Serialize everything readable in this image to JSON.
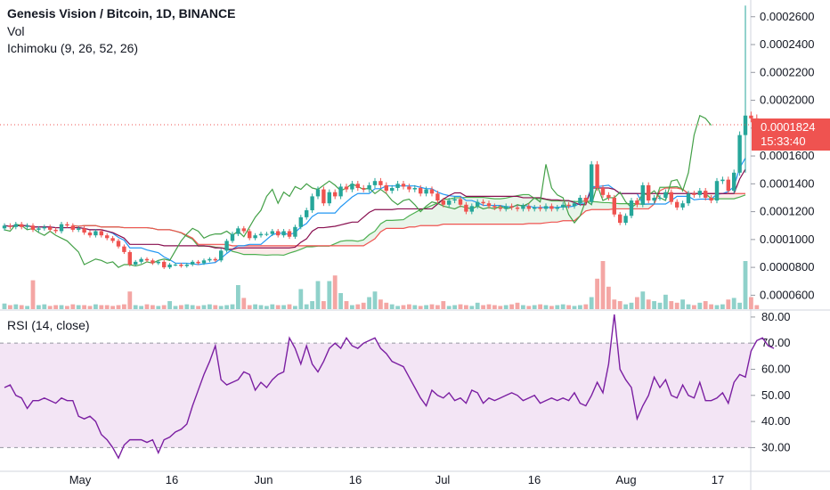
{
  "header": {
    "title": "Genesis Vision / Bitcoin, 1D, BINANCE",
    "vol_label": "Vol",
    "ichimoku_label": "Ichimoku (9, 26, 52, 26)",
    "rsi_label": "RSI (14, close)"
  },
  "price_tag": {
    "last": "0.0001824",
    "countdown": "15:33:40"
  },
  "colors": {
    "up": "#26a69a",
    "down": "#ef5350",
    "vol_up": "#8fd1ca",
    "vol_down": "#f4a6a4",
    "conversion": "#2196f3",
    "base": "#880e4f",
    "lagging": "#43a047",
    "lead_a": "#4caf50",
    "lead_b": "#ef5350",
    "rsi": "#7b1fa2",
    "rsi_band": "#f3e5f5",
    "axis_text": "#131722",
    "tag": "#ef5350"
  },
  "chart_data": [
    {
      "type": "candlestick",
      "name": "price",
      "y_ticks": [
        "0.0000600",
        "0.0000800",
        "0.0001000",
        "0.0001200",
        "0.0001400",
        "0.0001600",
        "0.0001800",
        "0.0002000",
        "0.0002200",
        "0.0002400",
        "0.0002600"
      ],
      "x_ticks": [
        "May",
        "16",
        "Jun",
        "16",
        "Jul",
        "16",
        "Aug",
        "17"
      ],
      "ylim": [
        5e-05,
        0.000272
      ],
      "close": [
        0.00011,
        0.000109,
        0.000111,
        0.000109,
        0.00011,
        0.000107,
        0.000108,
        0.000109,
        0.000107,
        0.000106,
        0.000111,
        0.00011,
        0.000107,
        0.000108,
        0.000105,
        0.000103,
        0.000106,
        0.000103,
        0.000101,
        9.9e-05,
        9.5e-05,
        9.1e-05,
        8.2e-05,
        8.4e-05,
        8.6e-05,
        8.5e-05,
        8.3e-05,
        8.4e-05,
        8e-05,
        8.2e-05,
        8.2e-05,
        8.1e-05,
        8.2e-05,
        8.4e-05,
        8.3e-05,
        8.5e-05,
        8.6e-05,
        8.5e-05,
        9.2e-05,
        9.9e-05,
        0.000104,
        0.000108,
        0.000106,
        0.000101,
        0.000103,
        0.000104,
        0.000104,
        0.000106,
        0.000103,
        0.000106,
        0.000102,
        0.000109,
        0.000116,
        0.000121,
        0.000131,
        0.000136,
        0.000126,
        0.000134,
        0.000131,
        0.000138,
        0.000136,
        0.00014,
        0.000137,
        0.000136,
        0.000139,
        0.000142,
        0.000139,
        0.000135,
        0.000137,
        0.00014,
        0.000138,
        0.000136,
        0.000137,
        0.000133,
        0.000136,
        0.000133,
        0.000128,
        0.000125,
        0.000128,
        0.000129,
        0.000125,
        0.00012,
        0.000124,
        0.000127,
        0.000126,
        0.000124,
        0.000123,
        0.000122,
        0.000124,
        0.000123,
        0.000122,
        0.000124,
        0.000122,
        0.000123,
        0.000122,
        0.000124,
        0.000122,
        0.000123,
        0.000125,
        0.000124,
        0.000126,
        0.00013,
        0.000127,
        0.000154,
        0.000137,
        0.000132,
        0.00013,
        0.000118,
        0.000112,
        0.000117,
        0.000128,
        0.000125,
        0.000139,
        0.000128,
        0.00013,
        0.00013,
        0.000134,
        0.000127,
        0.000123,
        0.000126,
        0.000133,
        0.000132,
        0.000135,
        0.00013,
        0.000128,
        0.000142,
        0.000143,
        0.000135,
        0.000148,
        0.000175,
        0.000189,
        0.000187,
        0.000182
      ],
      "open": [
        0.000108,
        0.00011,
        0.000109,
        0.000111,
        0.000109,
        0.00011,
        0.000107,
        0.000108,
        0.000109,
        0.000107,
        0.000106,
        0.000111,
        0.00011,
        0.000107,
        0.000108,
        0.000105,
        0.000103,
        0.000106,
        0.000103,
        0.000101,
        9.9e-05,
        9.5e-05,
        9.1e-05,
        8.2e-05,
        8.4e-05,
        8.6e-05,
        8.5e-05,
        8.3e-05,
        8.4e-05,
        8e-05,
        8.2e-05,
        8.2e-05,
        8.1e-05,
        8.2e-05,
        8.4e-05,
        8.3e-05,
        8.5e-05,
        8.6e-05,
        8.5e-05,
        9.2e-05,
        9.9e-05,
        0.000104,
        0.000108,
        0.000106,
        0.000101,
        0.000103,
        0.000104,
        0.000104,
        0.000106,
        0.000103,
        0.000106,
        0.000102,
        0.000109,
        0.000116,
        0.000121,
        0.000131,
        0.000136,
        0.000126,
        0.000134,
        0.000131,
        0.000138,
        0.000136,
        0.00014,
        0.000137,
        0.000136,
        0.000139,
        0.000142,
        0.000139,
        0.000135,
        0.000137,
        0.00014,
        0.000138,
        0.000136,
        0.000137,
        0.000133,
        0.000136,
        0.000133,
        0.000128,
        0.000125,
        0.000128,
        0.000129,
        0.000125,
        0.00012,
        0.000124,
        0.000127,
        0.000126,
        0.000124,
        0.000123,
        0.000122,
        0.000124,
        0.000123,
        0.000122,
        0.000124,
        0.000122,
        0.000123,
        0.000122,
        0.000124,
        0.000122,
        0.000123,
        0.000125,
        0.000124,
        0.000126,
        0.00013,
        0.000127,
        0.000154,
        0.000137,
        0.000132,
        0.00013,
        0.000118,
        0.000112,
        0.000117,
        0.000128,
        0.000125,
        0.000139,
        0.000128,
        0.00013,
        0.00013,
        0.000134,
        0.000127,
        0.000123,
        0.000126,
        0.000133,
        0.000132,
        0.000135,
        0.00013,
        0.000128,
        0.000142,
        0.000143,
        0.000135,
        0.000148,
        0.000175,
        0.000189,
        0.000187
      ],
      "volume": [
        0.07,
        0.05,
        0.06,
        0.05,
        0.04,
        0.36,
        0.05,
        0.06,
        0.04,
        0.05,
        0.05,
        0.04,
        0.06,
        0.05,
        0.05,
        0.04,
        0.06,
        0.05,
        0.05,
        0.04,
        0.05,
        0.06,
        0.22,
        0.05,
        0.04,
        0.06,
        0.05,
        0.04,
        0.05,
        0.1,
        0.04,
        0.05,
        0.06,
        0.05,
        0.04,
        0.05,
        0.06,
        0.05,
        0.04,
        0.05,
        0.06,
        0.3,
        0.14,
        0.05,
        0.06,
        0.05,
        0.04,
        0.06,
        0.05,
        0.05,
        0.06,
        0.04,
        0.25,
        0.06,
        0.1,
        0.35,
        0.1,
        0.35,
        0.42,
        0.2,
        0.1,
        0.05,
        0.06,
        0.08,
        0.15,
        0.22,
        0.12,
        0.08,
        0.06,
        0.04,
        0.05,
        0.06,
        0.05,
        0.04,
        0.05,
        0.06,
        0.05,
        0.1,
        0.04,
        0.05,
        0.06,
        0.05,
        0.04,
        0.08,
        0.05,
        0.06,
        0.05,
        0.04,
        0.05,
        0.06,
        0.08,
        0.05,
        0.04,
        0.05,
        0.06,
        0.05,
        0.04,
        0.05,
        0.06,
        0.05,
        0.04,
        0.05,
        0.06,
        0.15,
        0.38,
        0.6,
        0.28,
        0.12,
        0.1,
        0.06,
        0.08,
        0.15,
        0.22,
        0.12,
        0.1,
        0.08,
        0.18,
        0.1,
        0.08,
        0.12,
        0.06,
        0.05,
        0.08,
        0.1,
        0.06,
        0.05,
        0.06,
        0.12,
        0.14,
        0.08,
        0.6,
        0.15,
        0.05
      ]
    },
    {
      "type": "line",
      "name": "RSI (14, close)",
      "y_ticks": [
        "30.00",
        "40.00",
        "50.00",
        "60.00",
        "70.00",
        "80.00"
      ],
      "ylim": [
        24,
        82
      ],
      "bands": [
        30,
        70
      ],
      "values": [
        53,
        54,
        50,
        49,
        45,
        48,
        48,
        49,
        48,
        47,
        49,
        48,
        48,
        42,
        41,
        42,
        40,
        35,
        33,
        30,
        26,
        31,
        33,
        33,
        33,
        32,
        33,
        28,
        33,
        34,
        36,
        37,
        39,
        46,
        52,
        58,
        63,
        69,
        56,
        54,
        55,
        56,
        59,
        58,
        52,
        55,
        53,
        56,
        58,
        59,
        72,
        68,
        62,
        69,
        62,
        59,
        63,
        68,
        70,
        68,
        72,
        69,
        68,
        70,
        71,
        72,
        68,
        66,
        63,
        62,
        61,
        57,
        53,
        49,
        46,
        52,
        50,
        49,
        51,
        48,
        49,
        47,
        52,
        51,
        47,
        49,
        48,
        49,
        50,
        51,
        50,
        48,
        49,
        50,
        47,
        48,
        49,
        48,
        49,
        48,
        51,
        47,
        46,
        50,
        55,
        51,
        62,
        81,
        60,
        56,
        53,
        41,
        46,
        50,
        57,
        53,
        56,
        50,
        49,
        54,
        50,
        49,
        55,
        48,
        48,
        49,
        51,
        47,
        55,
        58,
        57,
        67,
        71,
        72,
        69,
        68
      ]
    }
  ]
}
